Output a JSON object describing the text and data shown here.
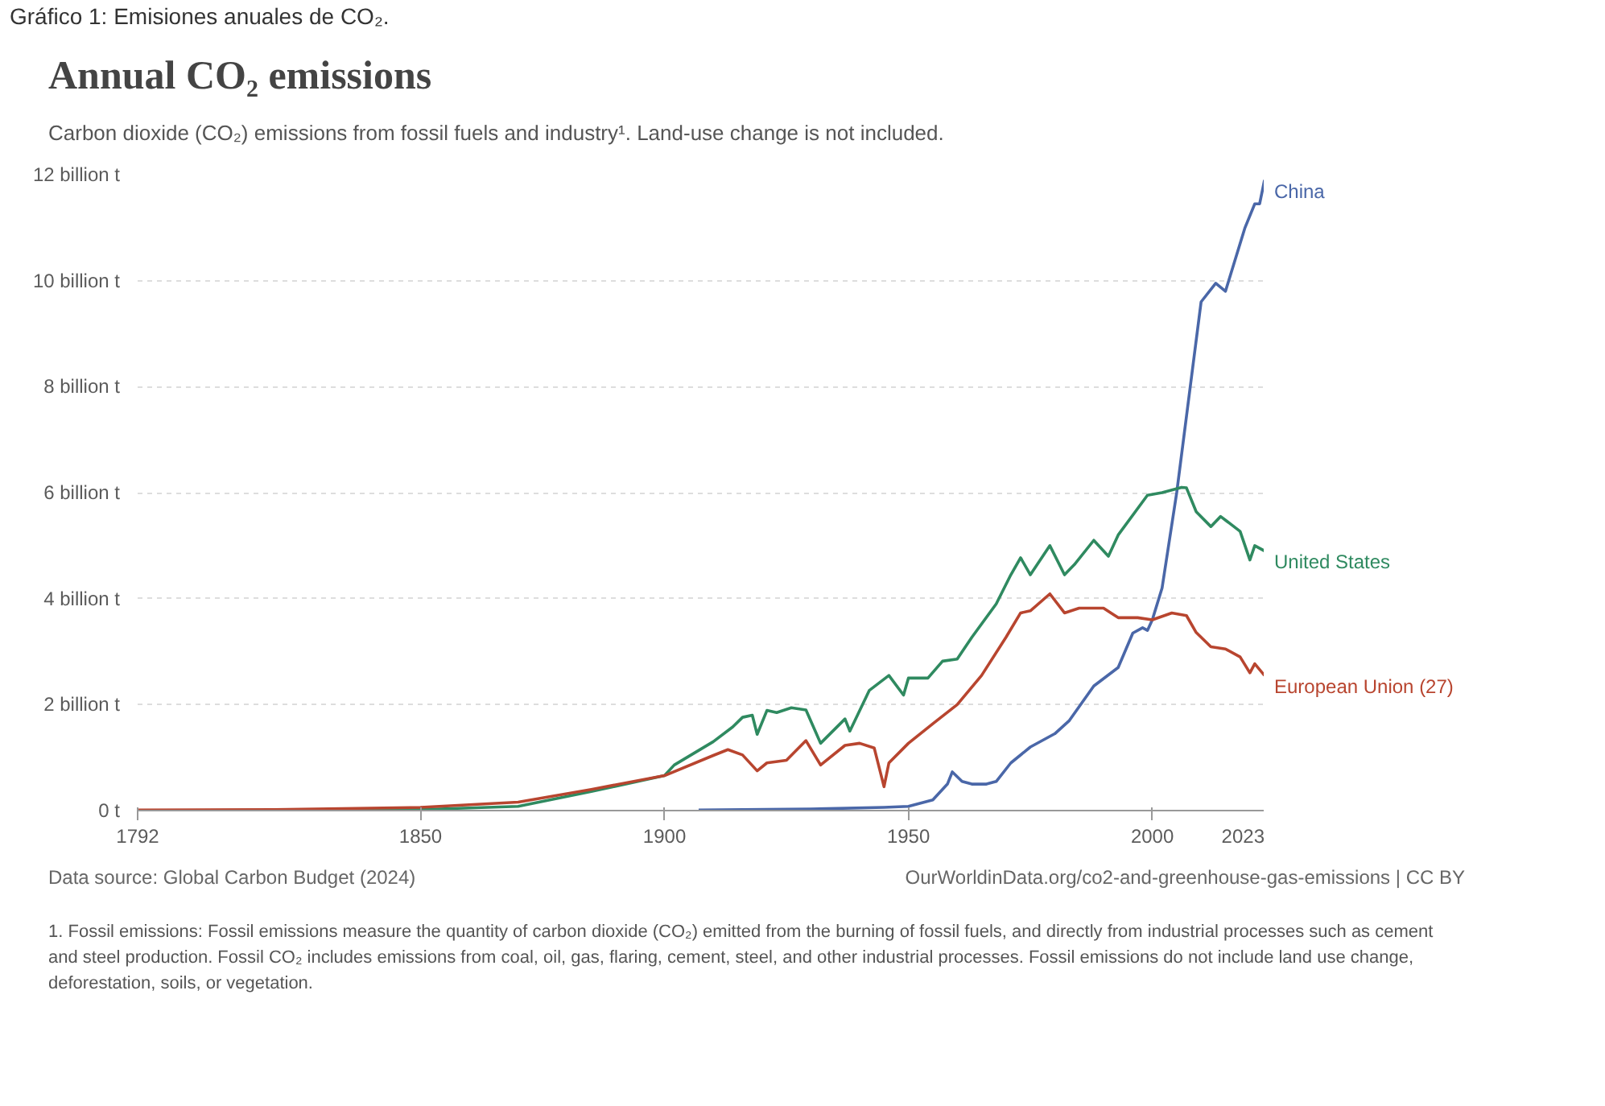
{
  "chart_data": {
    "type": "line",
    "title": "Annual CO₂ emissions",
    "subtitle": "Carbon dioxide (CO₂) emissions from fossil fuels and industry¹. Land-use change is not included.",
    "annotations": [
      "Gráfico 1: Emisiones anuales de CO₂.",
      "Data source: Global Carbon Budget (2024)",
      "OurWorldinData.org/co2-and-greenhouse-gas-emissions | CC BY",
      "1. Fossil emissions: Fossil emissions measure the quantity of carbon dioxide (CO₂) emitted from the burning of fossil fuels, and directly from industrial processes such as cement and steel production. Fossil CO₂ includes emissions from coal, oil, gas, flaring, cement, steel, and other industrial processes. Fossil emissions do not include land use change, deforestation, soils, or vegetation."
    ],
    "xlim": [
      1792,
      2023
    ],
    "xticks": [
      1792,
      1850,
      1900,
      1950,
      2000,
      2023
    ],
    "ylim": [
      0,
      12
    ],
    "yticks": [
      {
        "value": 0,
        "label": "0 t"
      },
      {
        "value": 2,
        "label": "2 billion t"
      },
      {
        "value": 4,
        "label": "4 billion t"
      },
      {
        "value": 6,
        "label": "6 billion t"
      },
      {
        "value": 8,
        "label": "8 billion t"
      },
      {
        "value": 10,
        "label": "10 billion t"
      },
      {
        "value": 12,
        "label": "12 billion t"
      }
    ],
    "grid": "y",
    "line_style": "solid",
    "marker": "none",
    "series": [
      {
        "name": "China",
        "color": "#4a67a8",
        "x": [
          1907,
          1930,
          1945,
          1950,
          1955,
          1958,
          1959,
          1961,
          1963,
          1966,
          1968,
          1971,
          1975,
          1980,
          1983,
          1988,
          1993,
          1996,
          1998,
          1999,
          2000,
          2002,
          2005,
          2010,
          2013,
          2015,
          2019,
          2021,
          2022,
          2023
        ],
        "values": [
          0.01,
          0.03,
          0.06,
          0.08,
          0.2,
          0.5,
          0.73,
          0.55,
          0.5,
          0.5,
          0.55,
          0.9,
          1.2,
          1.45,
          1.7,
          2.35,
          2.7,
          3.35,
          3.45,
          3.4,
          3.6,
          4.2,
          6.0,
          9.6,
          9.95,
          9.8,
          11.0,
          11.45,
          11.45,
          11.9
        ]
      },
      {
        "name": "United States",
        "color": "#2f8a60",
        "x": [
          1792,
          1850,
          1870,
          1885,
          1900,
          1902,
          1906,
          1910,
          1914,
          1916,
          1918,
          1919,
          1921,
          1923,
          1926,
          1929,
          1932,
          1937,
          1938,
          1942,
          1946,
          1949,
          1950,
          1954,
          1957,
          1960,
          1963,
          1968,
          1971,
          1973,
          1975,
          1979,
          1982,
          1984,
          1988,
          1991,
          1993,
          1999,
          2002,
          2006,
          2007,
          2009,
          2012,
          2014,
          2018,
          2020,
          2021,
          2023
        ],
        "values": [
          0.0,
          0.02,
          0.08,
          0.36,
          0.66,
          0.86,
          1.08,
          1.3,
          1.58,
          1.76,
          1.8,
          1.44,
          1.89,
          1.85,
          1.94,
          1.9,
          1.27,
          1.73,
          1.5,
          2.27,
          2.55,
          2.18,
          2.5,
          2.5,
          2.82,
          2.86,
          3.27,
          3.9,
          4.45,
          4.77,
          4.45,
          5.0,
          4.45,
          4.64,
          5.1,
          4.8,
          5.2,
          5.95,
          6.0,
          6.1,
          6.09,
          5.64,
          5.36,
          5.55,
          5.27,
          4.73,
          5.0,
          4.9
        ]
      },
      {
        "name": "European Union (27)",
        "color": "#b8452f",
        "x": [
          1792,
          1820,
          1850,
          1870,
          1885,
          1900,
          1910,
          1913,
          1916,
          1919,
          1921,
          1925,
          1929,
          1932,
          1937,
          1940,
          1943,
          1945,
          1946,
          1950,
          1955,
          1960,
          1965,
          1970,
          1973,
          1975,
          1979,
          1982,
          1985,
          1990,
          1993,
          1997,
          2000,
          2004,
          2007,
          2009,
          2012,
          2015,
          2018,
          2020,
          2021,
          2023
        ],
        "values": [
          0.01,
          0.02,
          0.06,
          0.16,
          0.4,
          0.66,
          1.04,
          1.15,
          1.05,
          0.75,
          0.9,
          0.95,
          1.32,
          0.86,
          1.23,
          1.27,
          1.18,
          0.45,
          0.9,
          1.27,
          1.64,
          2.0,
          2.55,
          3.27,
          3.73,
          3.77,
          4.09,
          3.73,
          3.82,
          3.82,
          3.64,
          3.64,
          3.6,
          3.73,
          3.68,
          3.36,
          3.09,
          3.05,
          2.9,
          2.6,
          2.77,
          2.55
        ]
      }
    ]
  }
}
